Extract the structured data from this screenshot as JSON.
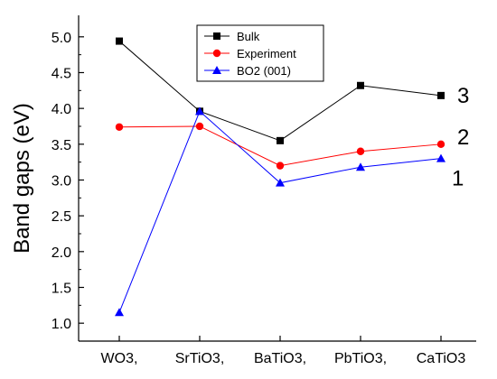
{
  "chart_data": {
    "type": "line",
    "title": "",
    "xlabel": "",
    "ylabel": "Band gaps (eV)",
    "categories": [
      "WO3,",
      "SrTiO3,",
      "BaTiO3,",
      "PbTiO3,",
      "CaTiO3"
    ],
    "ylim": [
      0.75,
      5.3
    ],
    "yticks": [
      1.0,
      1.5,
      2.0,
      2.5,
      3.0,
      3.5,
      4.0,
      4.5,
      5.0
    ],
    "ytick_labels": [
      "1.0",
      "1.5",
      "2.0",
      "2.5",
      "3.0",
      "3.5",
      "4.0",
      "4.5",
      "5.0"
    ],
    "grid": false,
    "legend_position": "top-center",
    "series": [
      {
        "name": "Bulk",
        "color": "#000000",
        "marker": "square",
        "values": [
          4.94,
          3.96,
          3.55,
          4.32,
          4.18
        ]
      },
      {
        "name": "Experiment",
        "color": "#ff0000",
        "marker": "circle",
        "values": [
          3.74,
          3.75,
          3.2,
          3.4,
          3.5
        ]
      },
      {
        "name": "BO2 (001)",
        "color": "#0000ff",
        "marker": "triangle",
        "values": [
          1.15,
          3.96,
          2.96,
          3.18,
          3.3
        ]
      }
    ],
    "annotations": [
      {
        "text": "3",
        "series": 0
      },
      {
        "text": "2",
        "series": 1
      },
      {
        "text": "1",
        "series": 2
      }
    ]
  }
}
